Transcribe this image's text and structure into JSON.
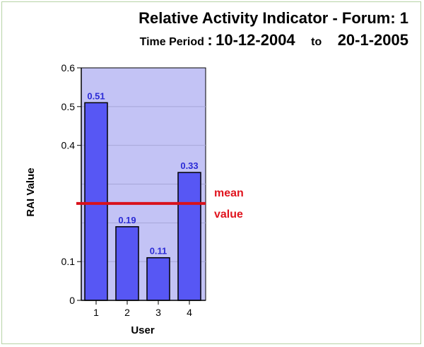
{
  "title": "Relative Activity Indicator - Forum: 1",
  "subtitle": {
    "label": "Time Period",
    "colon": ":",
    "from_date": "10-12-2004",
    "to_word": "to",
    "to_date": "20-1-2005"
  },
  "colors": {
    "bar_fill": "#5757f4",
    "plot_bg": "#c3c3f5",
    "mean_line": "#d9111b",
    "label": "#2b2bd6"
  },
  "chart_data": {
    "type": "bar",
    "xlabel": "User",
    "ylabel": "RAI Value",
    "categories": [
      "1",
      "2",
      "3",
      "4"
    ],
    "values": [
      0.51,
      0.19,
      0.11,
      0.33
    ],
    "value_labels": [
      "0.51",
      "0.19",
      "0.11",
      "0.33"
    ],
    "ylim": [
      0,
      0.6
    ],
    "yticks": [
      0,
      0.1,
      0.4,
      0.5,
      0.6
    ],
    "ytick_labels": [
      "0",
      "0.1",
      "0.4",
      "0.5",
      "0.6"
    ],
    "gridlines": [
      0.1,
      0.2,
      0.3,
      0.4,
      0.5
    ],
    "mean": {
      "value": 0.25,
      "label_line1": "mean",
      "label_line2": "value"
    }
  }
}
